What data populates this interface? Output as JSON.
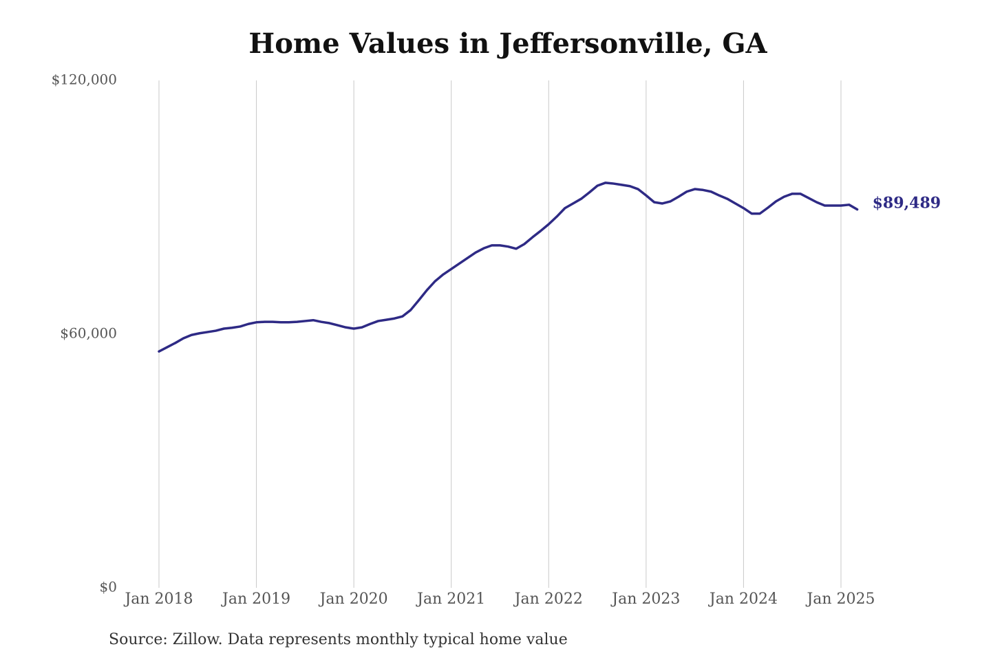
{
  "chart_data": {
    "type": "line",
    "title": "Home Values in Jeffersonville, GA",
    "source": "Source: Zillow. Data represents monthly typical home value",
    "x": [
      "2018-01",
      "2018-02",
      "2018-03",
      "2018-04",
      "2018-05",
      "2018-06",
      "2018-07",
      "2018-08",
      "2018-09",
      "2018-10",
      "2018-11",
      "2018-12",
      "2019-01",
      "2019-02",
      "2019-03",
      "2019-04",
      "2019-05",
      "2019-06",
      "2019-07",
      "2019-08",
      "2019-09",
      "2019-10",
      "2019-11",
      "2019-12",
      "2020-01",
      "2020-02",
      "2020-03",
      "2020-04",
      "2020-05",
      "2020-06",
      "2020-07",
      "2020-08",
      "2020-09",
      "2020-10",
      "2020-11",
      "2020-12",
      "2021-01",
      "2021-02",
      "2021-03",
      "2021-04",
      "2021-05",
      "2021-06",
      "2021-07",
      "2021-08",
      "2021-09",
      "2021-10",
      "2021-11",
      "2021-12",
      "2022-01",
      "2022-02",
      "2022-03",
      "2022-04",
      "2022-05",
      "2022-06",
      "2022-07",
      "2022-08",
      "2022-09",
      "2022-10",
      "2022-11",
      "2022-12",
      "2023-01",
      "2023-02",
      "2023-03",
      "2023-04",
      "2023-05",
      "2023-06",
      "2023-07",
      "2023-08",
      "2023-09",
      "2023-10",
      "2023-11",
      "2023-12",
      "2024-01",
      "2024-02",
      "2024-03",
      "2024-04",
      "2024-05",
      "2024-06",
      "2024-07",
      "2024-08",
      "2024-09",
      "2024-10",
      "2024-11",
      "2024-12",
      "2025-01",
      "2025-02",
      "2025-03"
    ],
    "series": [
      {
        "color": "#2e2a85",
        "values": [
          55900,
          56900,
          57900,
          59000,
          59800,
          60200,
          60500,
          60800,
          61300,
          61500,
          61800,
          62400,
          62800,
          62900,
          62900,
          62800,
          62800,
          62900,
          63100,
          63300,
          62900,
          62600,
          62100,
          61600,
          61300,
          61600,
          62400,
          63100,
          63400,
          63700,
          64200,
          65700,
          68000,
          70400,
          72500,
          74100,
          75400,
          76700,
          78000,
          79300,
          80300,
          81000,
          81000,
          80700,
          80200,
          81300,
          82900,
          84400,
          86000,
          87800,
          89800,
          90900,
          92000,
          93500,
          95100,
          95800,
          95600,
          95300,
          95000,
          94300,
          92800,
          91200,
          90900,
          91400,
          92500,
          93700,
          94300,
          94100,
          93700,
          92800,
          92000,
          90900,
          89800,
          88500,
          88500,
          89900,
          91400,
          92500,
          93200,
          93200,
          92200,
          91200,
          90400,
          90400,
          90400,
          90600,
          89489
        ],
        "value_labels": [
          null,
          null,
          null,
          null,
          null,
          null,
          null,
          null,
          null,
          null,
          null,
          null,
          null,
          null,
          null,
          null,
          null,
          null,
          null,
          null,
          null,
          null,
          null,
          null,
          null,
          null,
          null,
          null,
          null,
          null,
          null,
          null,
          null,
          null,
          null,
          null,
          null,
          null,
          null,
          null,
          null,
          null,
          null,
          null,
          null,
          null,
          null,
          null,
          null,
          null,
          null,
          null,
          null,
          null,
          null,
          null,
          null,
          null,
          null,
          null,
          null,
          null,
          null,
          null,
          null,
          null,
          null,
          null,
          null,
          null,
          null,
          null,
          null,
          null,
          null,
          null,
          null,
          null,
          null,
          null,
          null,
          null,
          null,
          null,
          null,
          null,
          "$89,489"
        ]
      }
    ],
    "ylim": [
      0,
      120000
    ],
    "yticks": [
      {
        "value": 0,
        "label": "$0"
      },
      {
        "value": 60000,
        "label": "$60,000"
      },
      {
        "value": 120000,
        "label": "$120,000"
      }
    ],
    "xticks": [
      {
        "value": "2018-01",
        "label": "Jan 2018"
      },
      {
        "value": "2019-01",
        "label": "Jan 2019"
      },
      {
        "value": "2020-01",
        "label": "Jan 2020"
      },
      {
        "value": "2021-01",
        "label": "Jan 2021"
      },
      {
        "value": "2022-01",
        "label": "Jan 2022"
      },
      {
        "value": "2023-01",
        "label": "Jan 2023"
      },
      {
        "value": "2024-01",
        "label": "Jan 2024"
      },
      {
        "value": "2025-01",
        "label": "Jan 2025"
      }
    ],
    "grid": "x"
  }
}
